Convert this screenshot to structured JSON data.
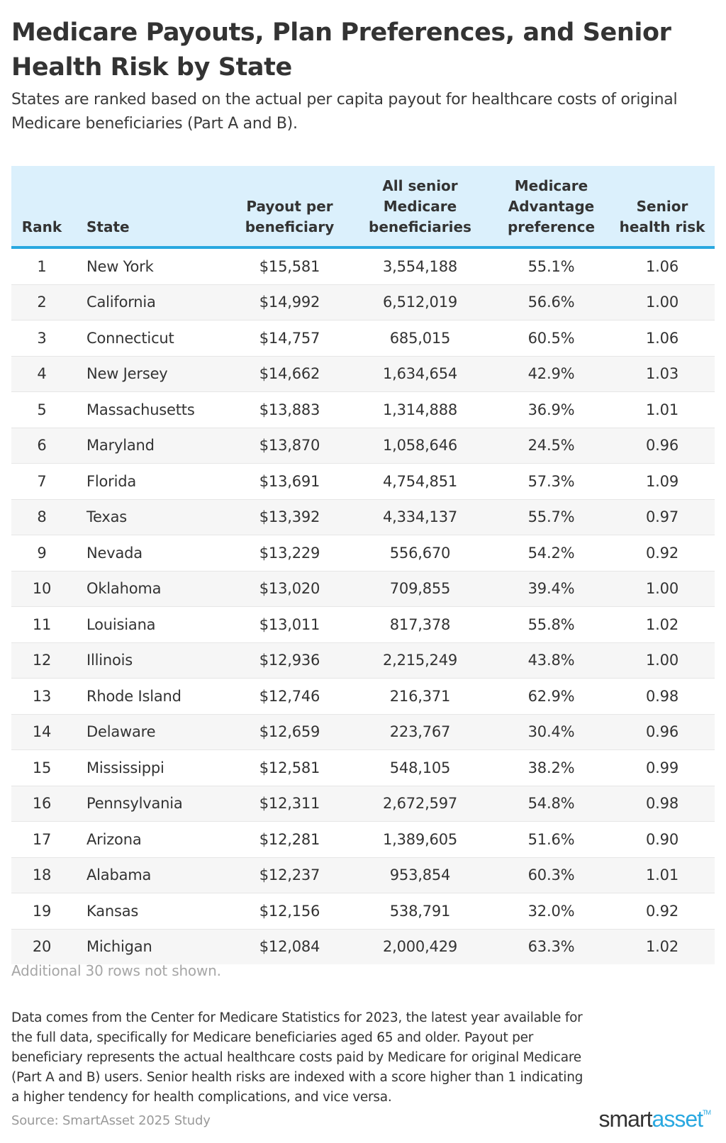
{
  "header": {
    "title": "Medicare Payouts, Plan Preferences, and Senior Health Risk by State",
    "subtitle": "States are ranked based on the actual per capita payout for healthcare costs of original Medicare beneficiaries (Part A and B)."
  },
  "table": {
    "columns": [
      "Rank",
      "State",
      "Payout per beneficiary",
      "All senior Medicare beneficiaries",
      "Medicare Advantage preference",
      "Senior health risk"
    ],
    "rows": [
      [
        "1",
        "New York",
        "$15,581",
        "3,554,188",
        "55.1%",
        "1.06"
      ],
      [
        "2",
        "California",
        "$14,992",
        "6,512,019",
        "56.6%",
        "1.00"
      ],
      [
        "3",
        "Connecticut",
        "$14,757",
        "685,015",
        "60.5%",
        "1.06"
      ],
      [
        "4",
        "New Jersey",
        "$14,662",
        "1,634,654",
        "42.9%",
        "1.03"
      ],
      [
        "5",
        "Massachusetts",
        "$13,883",
        "1,314,888",
        "36.9%",
        "1.01"
      ],
      [
        "6",
        "Maryland",
        "$13,870",
        "1,058,646",
        "24.5%",
        "0.96"
      ],
      [
        "7",
        "Florida",
        "$13,691",
        "4,754,851",
        "57.3%",
        "1.09"
      ],
      [
        "8",
        "Texas",
        "$13,392",
        "4,334,137",
        "55.7%",
        "0.97"
      ],
      [
        "9",
        "Nevada",
        "$13,229",
        "556,670",
        "54.2%",
        "0.92"
      ],
      [
        "10",
        "Oklahoma",
        "$13,020",
        "709,855",
        "39.4%",
        "1.00"
      ],
      [
        "11",
        "Louisiana",
        "$13,011",
        "817,378",
        "55.8%",
        "1.02"
      ],
      [
        "12",
        "Illinois",
        "$12,936",
        "2,215,249",
        "43.8%",
        "1.00"
      ],
      [
        "13",
        "Rhode Island",
        "$12,746",
        "216,371",
        "62.9%",
        "0.98"
      ],
      [
        "14",
        "Delaware",
        "$12,659",
        "223,767",
        "30.4%",
        "0.96"
      ],
      [
        "15",
        "Mississippi",
        "$12,581",
        "548,105",
        "38.2%",
        "0.99"
      ],
      [
        "16",
        "Pennsylvania",
        "$12,311",
        "2,672,597",
        "54.8%",
        "0.98"
      ],
      [
        "17",
        "Arizona",
        "$12,281",
        "1,389,605",
        "51.6%",
        "0.90"
      ],
      [
        "18",
        "Alabama",
        "$12,237",
        "953,854",
        "60.3%",
        "1.01"
      ],
      [
        "19",
        "Kansas",
        "$12,156",
        "538,791",
        "32.0%",
        "0.92"
      ],
      [
        "20",
        "Michigan",
        "$12,084",
        "2,000,429",
        "63.3%",
        "1.02"
      ]
    ]
  },
  "footer": {
    "rows_note": "Additional 30 rows not shown.",
    "methodology": "Data comes from the Center for Medicare Statistics for 2023, the latest year available for the full data, specifically for Medicare beneficiaries aged 65 and older. Payout per beneficiary represents the actual healthcare costs paid by Medicare for original Medicare (Part A and B) users. Senior health risks are indexed with a score higher than 1 indicating a higher tendency for health complications, and vice versa.",
    "source": "Source: SmartAsset 2025 Study",
    "logo": {
      "part1": "smart",
      "part2": "asset",
      "tm": "TM"
    }
  },
  "colors": {
    "header_bg": "#dbf0fc",
    "accent": "#29a8e0",
    "row_alt": "#f6f6f6",
    "text": "#333333"
  }
}
